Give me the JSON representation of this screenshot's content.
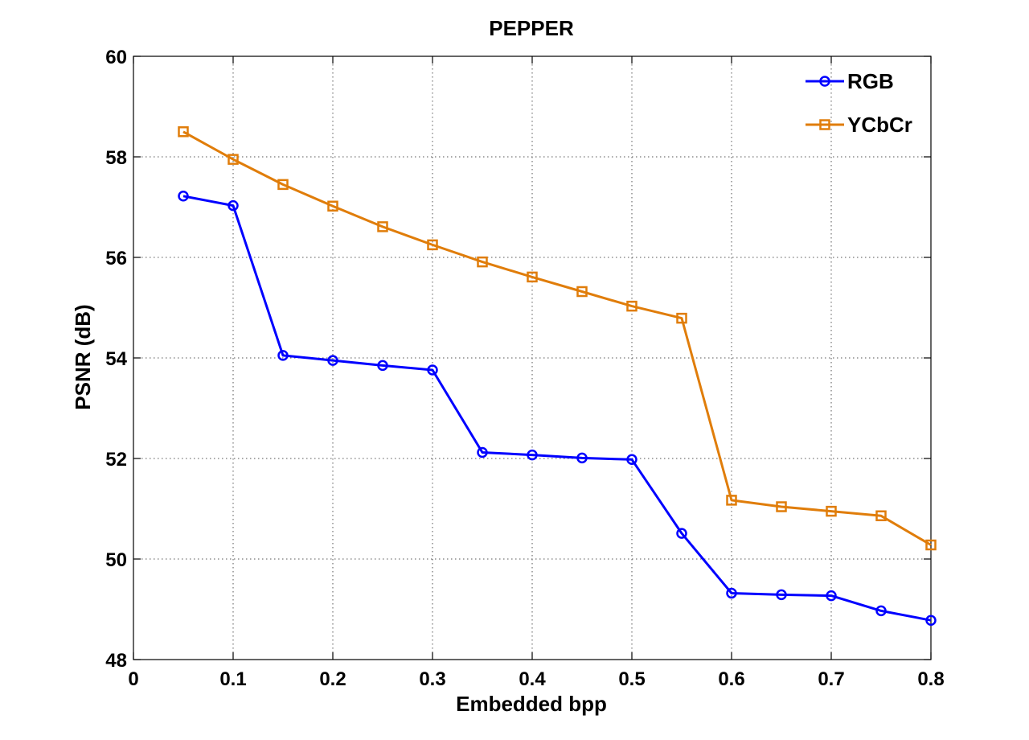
{
  "chart_data": {
    "type": "line",
    "title": "PEPPER",
    "xlabel": "Embedded bpp",
    "ylabel": "PSNR (dB)",
    "xlim": [
      0,
      0.8
    ],
    "ylim": [
      48,
      60
    ],
    "xticks": [
      0,
      0.1,
      0.2,
      0.3,
      0.4,
      0.5,
      0.6,
      0.7,
      0.8
    ],
    "yticks": [
      48,
      50,
      52,
      54,
      56,
      58,
      60
    ],
    "xtick_labels": [
      "0",
      "0.1",
      "0.2",
      "0.3",
      "0.4",
      "0.5",
      "0.6",
      "0.7",
      "0.8"
    ],
    "ytick_labels": [
      "48",
      "50",
      "52",
      "54",
      "56",
      "58",
      "60"
    ],
    "grid": true,
    "legend_position": "top-right",
    "x": [
      0.05,
      0.1,
      0.15,
      0.2,
      0.25,
      0.3,
      0.35,
      0.4,
      0.45,
      0.5,
      0.55,
      0.6,
      0.65,
      0.7,
      0.75,
      0.8
    ],
    "series": [
      {
        "name": "RGB",
        "color": "#0000ff",
        "marker": "circle",
        "values": [
          57.22,
          57.03,
          54.05,
          53.95,
          53.85,
          53.76,
          52.12,
          52.07,
          52.01,
          51.98,
          50.51,
          49.32,
          49.29,
          49.27,
          48.97,
          48.78
        ]
      },
      {
        "name": "YCbCr",
        "color": "#e07d0a",
        "marker": "square",
        "values": [
          58.5,
          57.95,
          57.45,
          57.02,
          56.61,
          56.25,
          55.91,
          55.61,
          55.32,
          55.03,
          54.79,
          51.17,
          51.04,
          50.95,
          50.86,
          50.28
        ]
      }
    ]
  }
}
